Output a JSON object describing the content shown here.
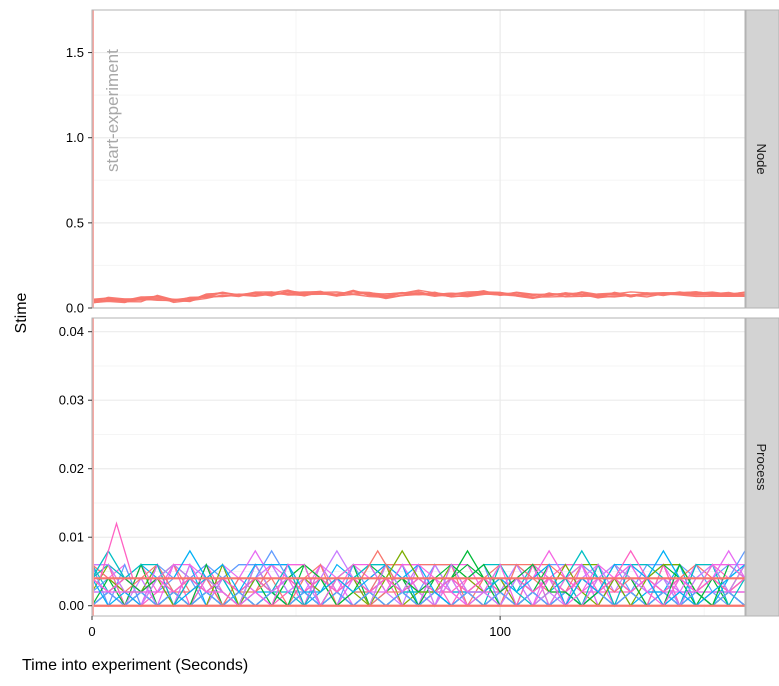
{
  "chart_data": {
    "type": "line",
    "xlabel": "Time into experiment (Seconds)",
    "ylabel": "Stime",
    "xlim": [
      0,
      160
    ],
    "x_ticks": [
      0,
      100
    ],
    "x_tick_labels": [
      "0",
      "100"
    ],
    "grid": true,
    "legend": "none",
    "annotation": {
      "text": "start-experiment",
      "x": 0,
      "color": "#a8a8a8"
    },
    "colors": {
      "strip_bg": "#d3d3d3",
      "panel_border": "#b3b3b3",
      "grid_major": "#ebebeb",
      "grid_minor": "#f5f5f5",
      "annotation_line": "#f5a9a4",
      "node": "#f8766d",
      "process_palette": [
        "#f8766d",
        "#e76bf3",
        "#00bfc4",
        "#7cae00",
        "#619cff",
        "#ff61c3",
        "#00ba38",
        "#c77cff",
        "#00b0f6",
        "#f564e3"
      ]
    },
    "panels": [
      {
        "strip": "Node",
        "ylim": [
          0,
          1.75
        ],
        "y_ticks": [
          0,
          0.5,
          1.0,
          1.5
        ],
        "y_tick_labels": [
          "0.0",
          "0.5",
          "1.0",
          "1.5"
        ],
        "x_step": 4,
        "series_count": 8,
        "series_color": "#f8766d",
        "value_min": 0.03,
        "value_max": 0.11,
        "base_values": [
          0.04,
          0.05,
          0.04,
          0.05,
          0.06,
          0.04,
          0.05,
          0.07,
          0.08,
          0.07,
          0.08,
          0.08,
          0.09,
          0.08,
          0.09,
          0.08,
          0.09,
          0.08,
          0.07,
          0.08,
          0.09,
          0.08,
          0.08,
          0.08,
          0.09,
          0.08,
          0.08,
          0.07,
          0.08,
          0.08,
          0.08,
          0.07,
          0.08,
          0.08,
          0.08,
          0.08,
          0.08,
          0.08,
          0.08,
          0.08,
          0.08
        ]
      },
      {
        "strip": "Process",
        "ylim": [
          -0.0015,
          0.042
        ],
        "y_ticks": [
          0,
          0.01,
          0.02,
          0.03,
          0.04
        ],
        "y_tick_labels": [
          "0.00",
          "0.01",
          "0.02",
          "0.03",
          "0.04"
        ],
        "x_step": 4,
        "series_count": 30,
        "levels": [
          0,
          0.002,
          0.004,
          0.006
        ],
        "peaks": [
          {
            "x": 4,
            "y": 0.008
          },
          {
            "x": 6,
            "y": 0.012
          },
          {
            "x": 24,
            "y": 0.008
          },
          {
            "x": 40,
            "y": 0.008
          },
          {
            "x": 44,
            "y": 0.008
          },
          {
            "x": 60,
            "y": 0.008
          },
          {
            "x": 70,
            "y": 0.008
          },
          {
            "x": 76,
            "y": 0.008
          },
          {
            "x": 92,
            "y": 0.008
          },
          {
            "x": 112,
            "y": 0.008
          },
          {
            "x": 120,
            "y": 0.008
          },
          {
            "x": 132,
            "y": 0.008
          },
          {
            "x": 140,
            "y": 0.008
          },
          {
            "x": 156,
            "y": 0.008
          },
          {
            "x": 160,
            "y": 0.008
          }
        ]
      }
    ]
  }
}
